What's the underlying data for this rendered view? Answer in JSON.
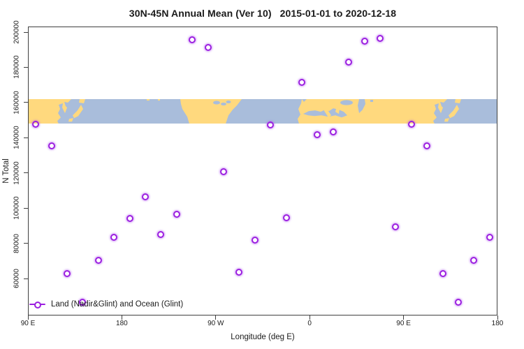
{
  "title": "30N-45N Annual Mean (Ver 10)   2015-01-01 to 2020-12-18",
  "legend": {
    "label": "Land (Nadir&Glint) and Ocean (Glint)"
  },
  "colors": {
    "point": "#9B1EE0",
    "point_halo": "rgba(176,91,240,0.55)",
    "land": "#FFD97E",
    "ocean": "#A9BDDB",
    "axis": "#3f3f3f"
  },
  "chart_data": {
    "type": "scatter",
    "title": "30N-45N Annual Mean (Ver 10)   2015-01-01 to 2020-12-18",
    "xlabel": "Longitude (deg E)",
    "ylabel": "N Total",
    "xlim": [
      90,
      540
    ],
    "ylim": [
      39000,
      203200
    ],
    "grid": false,
    "legend_position": "bottom-left-inside",
    "x_ticks": [
      {
        "value": 90,
        "label": "90 E"
      },
      {
        "value": 180,
        "label": "180"
      },
      {
        "value": 270,
        "label": "90 W"
      },
      {
        "value": 360,
        "label": "0"
      },
      {
        "value": 450,
        "label": "90 E"
      },
      {
        "value": 540,
        "label": "180"
      }
    ],
    "y_ticks": [
      {
        "value": 60000,
        "label": "60000"
      },
      {
        "value": 80000,
        "label": "80000"
      },
      {
        "value": 100000,
        "label": "100000"
      },
      {
        "value": 120000,
        "label": "120000"
      },
      {
        "value": 140000,
        "label": "140000"
      },
      {
        "value": 160000,
        "label": "160000"
      },
      {
        "value": 180000,
        "label": "180000"
      },
      {
        "value": 200000,
        "label": "200000"
      }
    ],
    "map_band": {
      "description": "30N-45N latitude land/ocean world-map strip (longitude wraps 90E through 180, 90W, 0 back to 180)",
      "y_top": 162000,
      "y_bottom": 148000
    },
    "points": [
      {
        "lon": 97.5,
        "n_total": 147800
      },
      {
        "lon": 112.5,
        "n_total": 135400
      },
      {
        "lon": 127.5,
        "n_total": 62800
      },
      {
        "lon": 142.5,
        "n_total": 46400
      },
      {
        "lon": 157.5,
        "n_total": 70500
      },
      {
        "lon": 172.5,
        "n_total": 83500
      },
      {
        "lon": 187.5,
        "n_total": 94300
      },
      {
        "lon": 202.5,
        "n_total": 106600
      },
      {
        "lon": 217.5,
        "n_total": 85200
      },
      {
        "lon": 232.5,
        "n_total": 96400
      },
      {
        "lon": 247.5,
        "n_total": 195600
      },
      {
        "lon": 262.5,
        "n_total": 191300
      },
      {
        "lon": 277.5,
        "n_total": 120700
      },
      {
        "lon": 292.5,
        "n_total": 63400
      },
      {
        "lon": 307.5,
        "n_total": 82000
      },
      {
        "lon": 322.5,
        "n_total": 147100
      },
      {
        "lon": 337.5,
        "n_total": 94600
      },
      {
        "lon": 352.5,
        "n_total": 171300
      },
      {
        "lon": 367.5,
        "n_total": 141700
      },
      {
        "lon": 382.5,
        "n_total": 143300
      },
      {
        "lon": 397.5,
        "n_total": 182900
      },
      {
        "lon": 412.5,
        "n_total": 194800
      },
      {
        "lon": 427.5,
        "n_total": 196600
      },
      {
        "lon": 442.5,
        "n_total": 89300
      },
      {
        "lon": 457.5,
        "n_total": 147800
      },
      {
        "lon": 472.5,
        "n_total": 135400
      },
      {
        "lon": 487.5,
        "n_total": 62800
      },
      {
        "lon": 502.5,
        "n_total": 46400
      },
      {
        "lon": 517.5,
        "n_total": 70500
      },
      {
        "lon": 532.5,
        "n_total": 83500
      }
    ]
  }
}
